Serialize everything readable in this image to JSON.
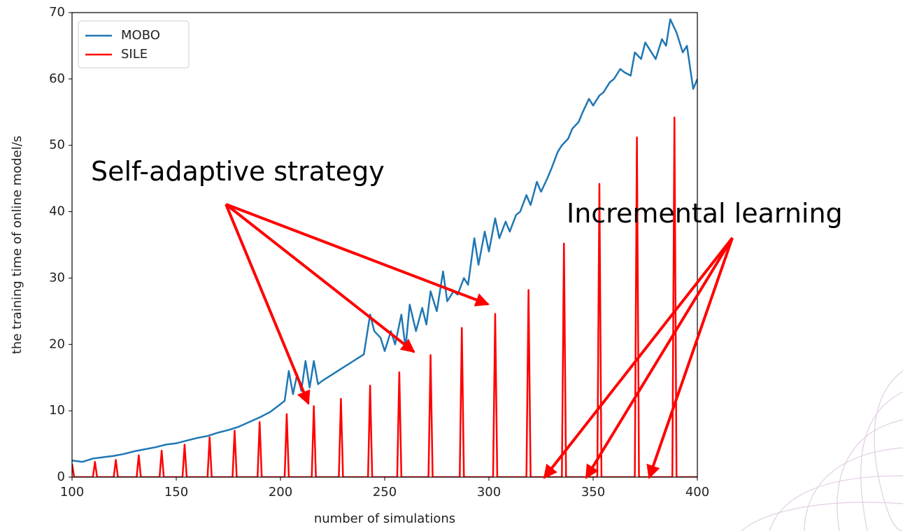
{
  "chart_data": {
    "type": "line",
    "xlabel": "number of simulations",
    "ylabel": "the training time of online model/s",
    "xlim": [
      100,
      400
    ],
    "xticks": [
      100,
      150,
      200,
      250,
      300,
      350,
      400
    ],
    "ylim": [
      0,
      70
    ],
    "yticks": [
      0,
      10,
      20,
      30,
      40,
      50,
      60,
      70
    ],
    "legend": "upper left",
    "annotations": [
      "Self-adaptive strategy",
      "Incremental learning"
    ],
    "series": [
      {
        "name": "MOBO",
        "color": "#1f77b4",
        "x": [
          100,
          105,
          110,
          115,
          120,
          125,
          130,
          135,
          140,
          145,
          150,
          155,
          160,
          165,
          170,
          175,
          180,
          185,
          190,
          195,
          200,
          202,
          204,
          206,
          208,
          210,
          212,
          214,
          216,
          218,
          220,
          225,
          230,
          235,
          240,
          243,
          245,
          248,
          250,
          253,
          255,
          258,
          260,
          262,
          265,
          268,
          270,
          272,
          275,
          278,
          280,
          283,
          285,
          288,
          290,
          293,
          295,
          298,
          300,
          303,
          305,
          308,
          310,
          313,
          315,
          318,
          320,
          323,
          325,
          328,
          330,
          333,
          335,
          338,
          340,
          343,
          345,
          348,
          350,
          353,
          355,
          358,
          360,
          363,
          365,
          368,
          370,
          373,
          375,
          378,
          380,
          383,
          385,
          387,
          390,
          393,
          395,
          398,
          400
        ],
        "values": [
          2.5,
          2.3,
          2.8,
          3.0,
          3.2,
          3.5,
          3.9,
          4.2,
          4.5,
          4.9,
          5.1,
          5.5,
          5.9,
          6.2,
          6.7,
          7.1,
          7.6,
          8.3,
          9.0,
          9.8,
          11.0,
          11.5,
          16.0,
          12.5,
          15.5,
          13.0,
          17.5,
          13.5,
          17.5,
          14.0,
          14.5,
          15.5,
          16.5,
          17.5,
          18.5,
          24.5,
          22.0,
          21.0,
          19.0,
          22.0,
          20.0,
          24.5,
          19.5,
          26.0,
          22.0,
          25.5,
          23.0,
          28.0,
          25.0,
          31.0,
          26.5,
          28.0,
          27.5,
          30.0,
          29.0,
          36.0,
          32.0,
          37.0,
          34.0,
          39.0,
          36.0,
          38.5,
          37.0,
          39.5,
          40.0,
          42.5,
          41.0,
          44.5,
          43.0,
          45.0,
          46.5,
          49.0,
          50.0,
          51.0,
          52.5,
          53.5,
          55.0,
          57.0,
          56.0,
          57.5,
          58.0,
          59.5,
          60.0,
          61.5,
          61.0,
          60.5,
          64.0,
          63.0,
          65.5,
          64.0,
          63.0,
          66.0,
          65.0,
          69.0,
          67.0,
          64.0,
          65.0,
          58.5,
          60.0
        ]
      },
      {
        "name": "SILE",
        "color": "#ff0000",
        "x": [
          100,
          101,
          110,
          111,
          112,
          120,
          121,
          122,
          131,
          132,
          133,
          142,
          143,
          144,
          153,
          154,
          155,
          165,
          166,
          167,
          177,
          178,
          179,
          189,
          190,
          191,
          202,
          203,
          204,
          215,
          216,
          217,
          228,
          229,
          230,
          242,
          243,
          244,
          256,
          257,
          258,
          271,
          272,
          273,
          286,
          287,
          288,
          302,
          303,
          304,
          318,
          319,
          320,
          335,
          336,
          337,
          352,
          353,
          354,
          370,
          371,
          372,
          388,
          389,
          390,
          400
        ],
        "values": [
          2,
          0,
          0,
          2.3,
          0,
          0,
          2.6,
          0,
          0,
          3.3,
          0,
          0,
          4,
          0,
          0,
          4.9,
          0,
          0,
          6,
          0,
          0,
          7,
          0,
          0,
          8.3,
          0,
          0,
          9.5,
          0,
          0,
          10.7,
          0,
          0,
          11.8,
          0,
          0,
          13.8,
          0,
          0,
          15.8,
          0,
          0,
          18.4,
          0,
          0,
          22.5,
          0,
          0,
          24.6,
          0,
          0,
          28.2,
          0,
          0,
          35.2,
          0,
          0,
          44.2,
          0,
          0,
          51.2,
          0,
          0,
          54.2,
          0,
          0
        ]
      }
    ]
  }
}
